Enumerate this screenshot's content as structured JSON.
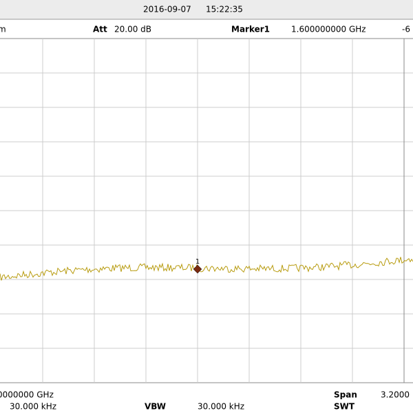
{
  "status": {
    "date": "2016-09-07",
    "time": "15:22:35"
  },
  "header": {
    "ref_unit": "m",
    "att_label": "Att",
    "att_value": "20.00 dB",
    "marker_label": "Marker1",
    "marker_freq": "1.600000000 GHz",
    "marker_level": "-6"
  },
  "footer": {
    "center_freq": "0000000 GHz",
    "rbw_value": "30.000 kHz",
    "vbw_label": "VBW",
    "vbw_value": "30.000 kHz",
    "span_label": "Span",
    "span_value": "3.2000",
    "swt_label": "SWT"
  },
  "marker": {
    "label": "1"
  }
}
